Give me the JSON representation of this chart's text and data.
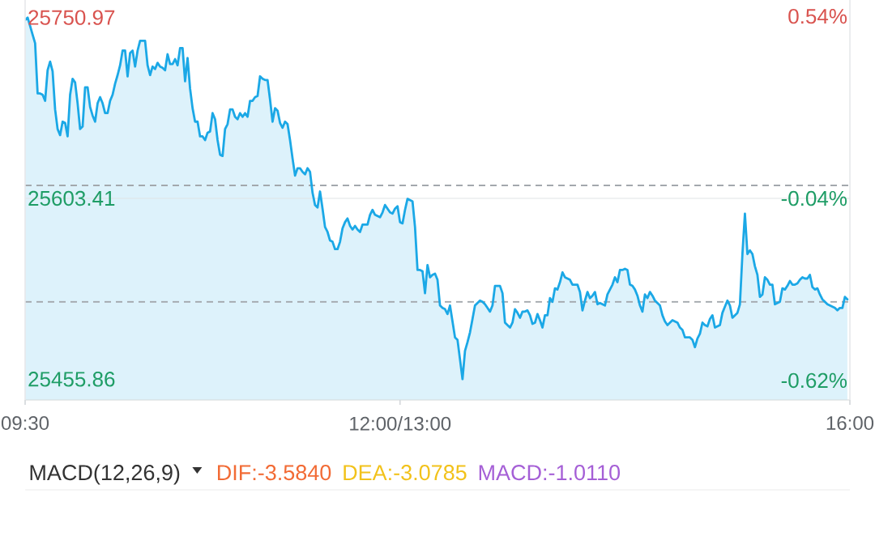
{
  "chart_data": [
    {
      "type": "area",
      "color": "#1ba8e6",
      "categories": [
        "09:30",
        null,
        null,
        null,
        null,
        null,
        null,
        null,
        null,
        null,
        null,
        null,
        null,
        null,
        null,
        null,
        null,
        null,
        null,
        null,
        null,
        null,
        null,
        null,
        null,
        null,
        null,
        null,
        null,
        null,
        null,
        null,
        null,
        null,
        null,
        null,
        null,
        null,
        null,
        null,
        null,
        null,
        null,
        null,
        null,
        null,
        null,
        null,
        null,
        null,
        null,
        null,
        null,
        null,
        null,
        null,
        null,
        null,
        null,
        null,
        null,
        null,
        null,
        null,
        null,
        null,
        null,
        null,
        null,
        null,
        null,
        null,
        null,
        null,
        null,
        null,
        null,
        null,
        null,
        null,
        null,
        null,
        null,
        null,
        null,
        null,
        null,
        null,
        null,
        null,
        null,
        null,
        null,
        null,
        null,
        null,
        null,
        null,
        null,
        null,
        null,
        null,
        null,
        null,
        null,
        null,
        null,
        null,
        null,
        null,
        null,
        null,
        null,
        null,
        null,
        null,
        null,
        null,
        null,
        null,
        null,
        null,
        null,
        null,
        null,
        null,
        null,
        null,
        null,
        null,
        null,
        null,
        null,
        null,
        null,
        null,
        null,
        null,
        null,
        null,
        null,
        null,
        null,
        null,
        null,
        null,
        null,
        null,
        null,
        null,
        "12:00/13:00",
        null,
        null,
        null,
        null,
        null,
        null,
        null,
        null,
        null,
        null,
        null,
        null,
        null,
        null,
        null,
        null,
        null,
        null,
        null,
        null,
        null,
        null,
        null,
        null,
        null,
        null,
        null,
        null,
        null,
        null,
        null,
        null,
        null,
        null,
        null,
        null,
        null,
        null,
        null,
        null,
        null,
        null,
        null,
        null,
        null,
        null,
        null,
        null,
        null,
        null,
        null,
        null,
        null,
        null,
        null,
        null,
        null,
        null,
        null,
        null,
        null,
        null,
        null,
        null,
        null,
        null,
        null,
        null,
        null,
        null,
        null,
        null,
        null,
        null,
        null,
        null,
        null,
        null,
        null,
        null,
        null,
        null,
        null,
        null,
        null,
        null,
        null,
        null,
        null,
        null,
        null,
        null,
        null,
        null,
        null,
        null,
        null,
        null,
        null,
        null,
        null,
        null,
        null,
        null,
        null,
        null,
        null,
        null,
        null,
        null,
        null,
        null,
        null,
        null,
        null,
        null,
        null,
        null,
        null,
        null,
        null,
        null,
        null,
        null,
        null,
        null,
        null,
        null,
        null,
        null,
        null,
        null,
        null,
        null,
        null,
        null,
        null,
        null,
        null,
        null,
        null,
        null,
        null,
        null,
        null,
        null,
        null,
        null,
        null,
        null,
        null,
        null,
        null,
        null,
        null,
        null,
        null,
        null,
        null,
        null,
        null,
        null,
        null,
        null,
        null,
        null,
        null,
        null,
        null,
        null,
        null,
        null,
        null,
        null,
        null,
        null,
        null,
        null,
        null,
        "16:00"
      ],
      "values": [
        25749,
        25750.97,
        25744,
        25737,
        25730,
        25689,
        25689,
        25688,
        25683,
        25708,
        25715,
        25707,
        25676,
        25660,
        25655,
        25666,
        25665,
        25654,
        25688,
        25701,
        25698,
        25681,
        25660,
        25662,
        25694,
        25694,
        25678,
        25671,
        25666,
        25681,
        25686,
        25681,
        25673,
        25673,
        25683,
        25688,
        25697,
        25704,
        25712,
        25724,
        25724,
        25703,
        25722,
        25724,
        25711,
        25724,
        25732,
        25732,
        25732,
        25712,
        25704,
        25711,
        25709,
        25714,
        25711,
        25710,
        25708,
        25721,
        25713,
        25713,
        25717,
        25712,
        25726,
        25726,
        25699,
        25718,
        25693,
        25677,
        25666,
        25666,
        25654,
        25654,
        25651,
        25657,
        25658,
        25673,
        25668,
        25651,
        25639,
        25638,
        25660,
        25664,
        25676,
        25676,
        25670,
        25668,
        25673,
        25670,
        25673,
        25670,
        25683,
        25683,
        25686,
        25687,
        25703,
        25701,
        25700,
        25700,
        25684,
        25666,
        25677,
        25675,
        25665,
        25661,
        25666,
        25664,
        25651,
        25636,
        25622,
        25628,
        25628,
        25625,
        25623,
        25628,
        25625,
        25608,
        25598,
        25596,
        25609,
        25595,
        25580,
        25576,
        25569,
        25568,
        25562,
        25562,
        25568,
        25579,
        25584,
        25587,
        25581,
        25578,
        25581,
        25578,
        25576,
        25582,
        25582,
        25582,
        25590,
        25594,
        25590,
        25589,
        25588,
        25592,
        25598,
        25595,
        25592,
        25591,
        25595,
        25597,
        25584,
        25583,
        25594,
        25603,
        25602,
        25601,
        25580,
        25545,
        25545,
        25544,
        25526,
        25549,
        25539,
        25541,
        25542,
        25537,
        25516,
        25514,
        25513,
        25509,
        25516,
        25503,
        25490,
        25488,
        25472,
        25455.86,
        25479,
        25486,
        25494,
        25505,
        25516,
        25518,
        25520,
        25519,
        25517,
        25514,
        25511,
        25516,
        25532,
        25532,
        25532,
        25526,
        25502,
        25500,
        25498,
        25502,
        25513,
        25510,
        25506,
        25511,
        25511,
        25512,
        25508,
        25501,
        25502,
        25509,
        25504,
        25498,
        25508,
        25508,
        25522,
        25519,
        25530,
        25529,
        25535,
        25543,
        25539,
        25538,
        25537,
        25533,
        25533,
        25533,
        25527,
        25512,
        25520,
        25527,
        25522,
        25524,
        25527,
        25517,
        25518,
        25517,
        25516,
        25525,
        25529,
        25533,
        25539,
        25535,
        25545,
        25545,
        25546,
        25545,
        25533,
        25532,
        25529,
        25524,
        25516,
        25511,
        25525,
        25522,
        25527,
        25524,
        25520,
        25518,
        25516,
        25508,
        25503,
        25500,
        25502,
        25504,
        25503,
        25502,
        25498,
        25496,
        25490,
        25490,
        25490,
        25488,
        25482,
        25489,
        25493,
        25502,
        25500,
        25499,
        25505,
        25508,
        25498,
        25499,
        25500,
        25510,
        25515,
        25520,
        25516,
        25506,
        25508,
        25510,
        25517,
        25558,
        25591,
        25558,
        25561,
        25558,
        25548,
        25541,
        25523,
        25525,
        25539,
        25537,
        25533,
        25533,
        25517,
        25518,
        25519,
        25530,
        25529,
        25532,
        25536,
        25533,
        25533,
        25534,
        25537,
        25539,
        25538,
        25538,
        25541,
        25531,
        25529,
        25530,
        25525,
        25521,
        25519,
        25517,
        25516,
        25515,
        25514,
        25512,
        25514,
        25514,
        25523,
        25521,
        null
      ],
      "ylim": [
        25438.9,
        25765.3
      ],
      "yticks": [
        25750.97,
        25603.41,
        25455.86
      ],
      "y2lim": [
        -0.682,
        0.592
      ],
      "y2ticks": [
        {
          "value": 0.54,
          "label": "0.54%"
        },
        {
          "value": -0.04,
          "label": "-0.04%"
        },
        {
          "value": -0.62,
          "label": "-0.62%"
        }
      ],
      "ref_lines": [
        {
          "axis": "y",
          "value": 25603.41,
          "line_style": "solid",
          "color": "#dfe3e6"
        },
        {
          "axis": "y",
          "value": 25614,
          "line_style": "dashed",
          "color": "#a3a8ad"
        },
        {
          "axis": "y",
          "value": 25519,
          "line_style": "dashed",
          "color": "#a3a8ad"
        }
      ]
    },
    {
      "type": "other",
      "title": "MACD(12,26,9)",
      "annotations": [
        "DIF:-3.5840",
        "DEA:-3.0785",
        "MACD:-1.0110"
      ],
      "colors": [
        "#f26b35",
        "#f2c21b",
        "#a55fd6"
      ]
    }
  ]
}
